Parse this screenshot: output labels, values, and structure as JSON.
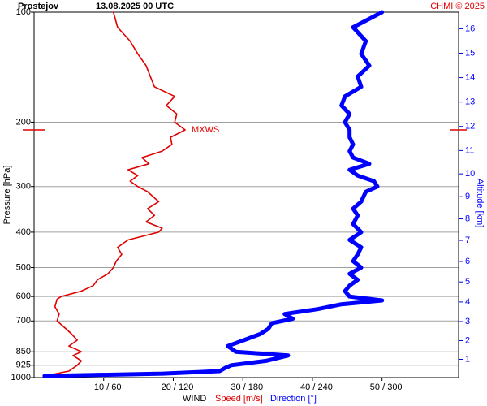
{
  "chart_data": {
    "type": "line",
    "station": "Prostejov",
    "title": "13.08.2025 00 UTC",
    "credit": "CHMI © 2025",
    "ylabel": "Pressure [hPa]",
    "y2label": "Altitude [km]",
    "xlabel": "WIND",
    "ylim": [
      1000,
      100
    ],
    "yscale": "log",
    "yticks": [
      100,
      200,
      300,
      400,
      500,
      600,
      700,
      850,
      925,
      1000
    ],
    "y2ticks": [
      1,
      2,
      3,
      4,
      5,
      6,
      7,
      8,
      9,
      10,
      11,
      12,
      13,
      14,
      15,
      16
    ],
    "xlim": [
      0,
      61
    ],
    "x2lim": [
      0,
      366
    ],
    "xticks": [
      {
        "value": 10,
        "label": "10 / 60"
      },
      {
        "value": 20,
        "label": "20 / 120"
      },
      {
        "value": 30,
        "label": "30 / 180"
      },
      {
        "value": 40,
        "label": "40 / 240"
      },
      {
        "value": 50,
        "label": "50 / 300"
      }
    ],
    "grid": true,
    "series": [
      {
        "name": "Speed [m/s]",
        "color": "#e00000",
        "axis": "x",
        "pressure": [
          990,
          960,
          925,
          900,
          870,
          850,
          820,
          790,
          760,
          730,
          700,
          670,
          640,
          610,
          600,
          580,
          560,
          540,
          520,
          500,
          480,
          460,
          440,
          420,
          400,
          390,
          375,
          360,
          345,
          330,
          310,
          300,
          290,
          280,
          270,
          260,
          250,
          240,
          230,
          220,
          210,
          200,
          190,
          180,
          170,
          160,
          150,
          140,
          130,
          120,
          110,
          100
        ],
        "values": [
          1.5,
          5,
          6.2,
          6.8,
          5.6,
          6.8,
          5,
          6.2,
          5.4,
          4.4,
          3.3,
          3.6,
          3,
          3.3,
          3.9,
          6.8,
          8.5,
          9.1,
          10.6,
          11.4,
          11.8,
          12.6,
          12,
          13.5,
          17.9,
          18.4,
          16.1,
          17.3,
          16.3,
          17.9,
          16.3,
          14.9,
          13.8,
          14.9,
          13.5,
          16.5,
          15.5,
          18.4,
          19.8,
          19.6,
          21.7,
          20.2,
          20.5,
          19,
          20.2,
          17.3,
          16.7,
          16.1,
          14.9,
          13.8,
          12,
          11.4
        ]
      },
      {
        "name": "Direction [°]",
        "color": "#0000ff",
        "axis": "x2",
        "pressure": [
          990,
          975,
          960,
          940,
          925,
          900,
          870,
          850,
          820,
          790,
          760,
          735,
          710,
          690,
          670,
          650,
          630,
          615,
          600,
          580,
          560,
          540,
          520,
          500,
          480,
          460,
          440,
          420,
          400,
          380,
          360,
          345,
          330,
          310,
          300,
          290,
          280,
          270,
          260,
          250,
          240,
          230,
          220,
          210,
          200,
          190,
          180,
          170,
          160,
          150,
          140,
          130,
          120,
          110,
          100
        ],
        "values": [
          9,
          111,
          160,
          165,
          170,
          200,
          219,
          174,
          167,
          181,
          195,
          202,
          205,
          223,
          216,
          244,
          265,
          300,
          272,
          268,
          272,
          279,
          272,
          282,
          275,
          279,
          282,
          272,
          282,
          275,
          279,
          275,
          282,
          286,
          296,
          293,
          279,
          272,
          289,
          275,
          272,
          275,
          272,
          272,
          268,
          272,
          265,
          268,
          282,
          279,
          289,
          282,
          286,
          275,
          300
        ]
      }
    ],
    "max_wind": {
      "label": "MXWS",
      "pressure": 210,
      "speed": 21.7
    }
  }
}
